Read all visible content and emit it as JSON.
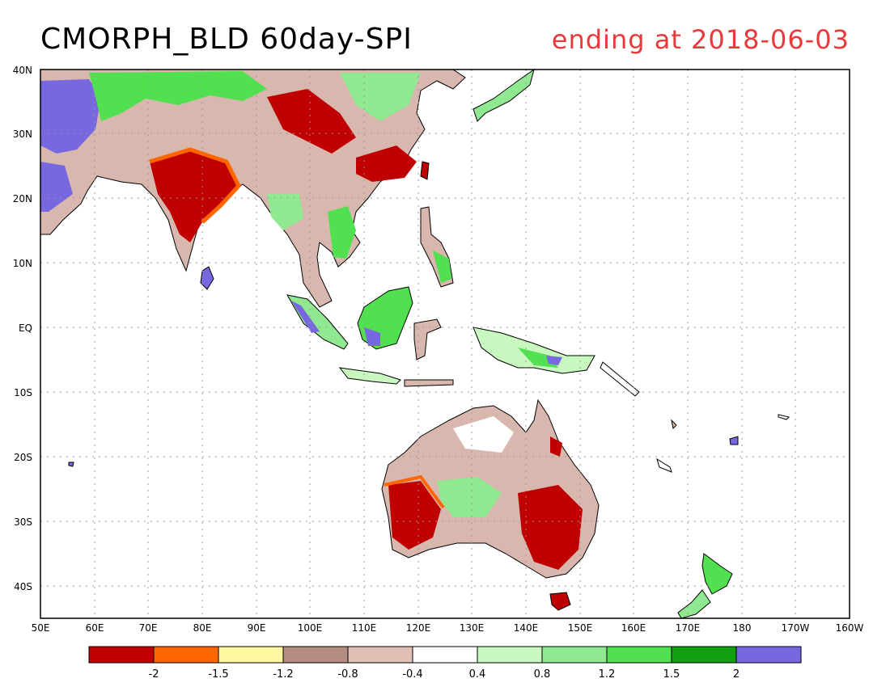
{
  "title": "CMORPH_BLD 60day-SPI",
  "subtitle": "ending at 2018-06-03",
  "colors": {
    "dry_extreme": "#c00000",
    "dry_severe": "#ff6600",
    "dry_moderate": "#fff8a0",
    "dry_mild": "#b48c82",
    "dry_slight": "#e0c0b4",
    "normal": "#ffffff",
    "wet_slight": "#c8f8c0",
    "wet_mild": "#90e890",
    "wet_moderate": "#50e050",
    "wet_severe": "#10a010",
    "wet_extreme": "#7868e0",
    "title_accent": "#e83a3a"
  },
  "map": {
    "x_labels": [
      "50E",
      "60E",
      "70E",
      "80E",
      "90E",
      "100E",
      "110E",
      "120E",
      "130E",
      "140E",
      "150E",
      "160E",
      "170E",
      "180",
      "170W",
      "160W"
    ],
    "y_labels": [
      "40N",
      "30N",
      "20N",
      "10N",
      "EQ",
      "10S",
      "20S",
      "30S",
      "40S"
    ]
  },
  "legend": {
    "labels": [
      "-2",
      "-1.5",
      "-1.2",
      "-0.8",
      "-0.4",
      "0.4",
      "0.8",
      "1.2",
      "1.5",
      "2"
    ],
    "colors": [
      "#c00000",
      "#ff6600",
      "#fff8a0",
      "#b48c82",
      "#e0c0b4",
      "#ffffff",
      "#c8f8c0",
      "#90e890",
      "#50e050",
      "#10a010",
      "#7868e0"
    ]
  }
}
